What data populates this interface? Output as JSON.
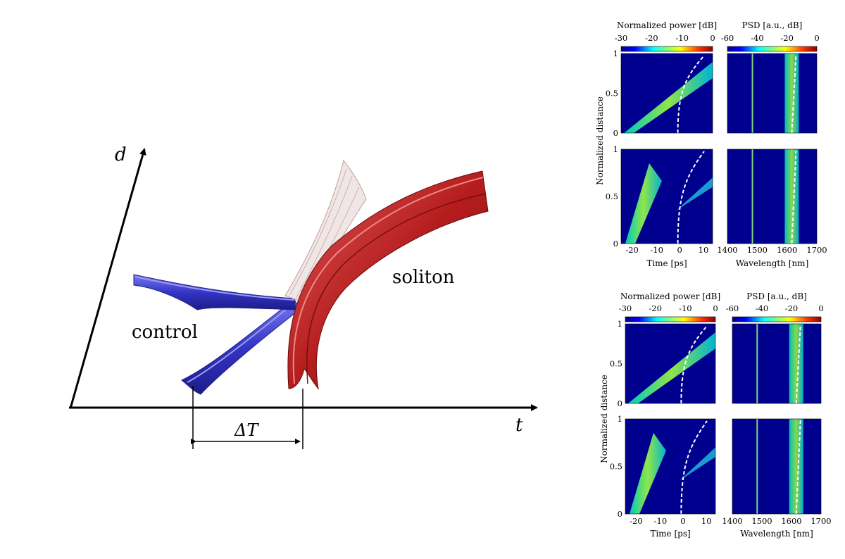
{
  "diagram": {
    "axis_d": "d",
    "axis_t": "t",
    "delta_t": "ΔT",
    "control_label": "control",
    "soliton_label": "soliton"
  },
  "colors": {
    "control": "#3b3bc8",
    "soliton": "#b81e1e",
    "heatmap_background": "#00008f",
    "guide_line": "#ffffff"
  },
  "panels": [
    {
      "power_colorbar": {
        "title": "Normalized power [dB]",
        "ticks": [
          "-30",
          "-20",
          "-10",
          "0"
        ]
      },
      "psd_colorbar": {
        "title": "PSD [a.u., dB]",
        "ticks": [
          "-60",
          "-40",
          "-20",
          "0"
        ]
      },
      "ylabel": "Normalized distance",
      "yticks": [
        "0",
        "0.5",
        "1"
      ],
      "time_xlabel": "Time [ps]",
      "time_xticks": [
        "-20",
        "-10",
        "0",
        "10"
      ],
      "wl_xlabel": "Wavelength [nm]",
      "wl_xticks": [
        "1400",
        "1500",
        "1600",
        "1700"
      ]
    },
    {
      "power_colorbar": {
        "title": "Normalized power [dB]",
        "ticks": [
          "-30",
          "-20",
          "-10",
          "0"
        ]
      },
      "psd_colorbar": {
        "title": "PSD [a.u., dB]",
        "ticks": [
          "-60",
          "-40",
          "-20",
          "0"
        ]
      },
      "ylabel": "Normalized distance",
      "yticks": [
        "0",
        "0.5",
        "1"
      ],
      "time_xlabel": "Time [ps]",
      "time_xticks": [
        "-20",
        "-10",
        "0",
        "10"
      ],
      "wl_xlabel": "Wavelength [nm]",
      "wl_xticks": [
        "1400",
        "1500",
        "1600",
        "1700"
      ]
    }
  ]
}
